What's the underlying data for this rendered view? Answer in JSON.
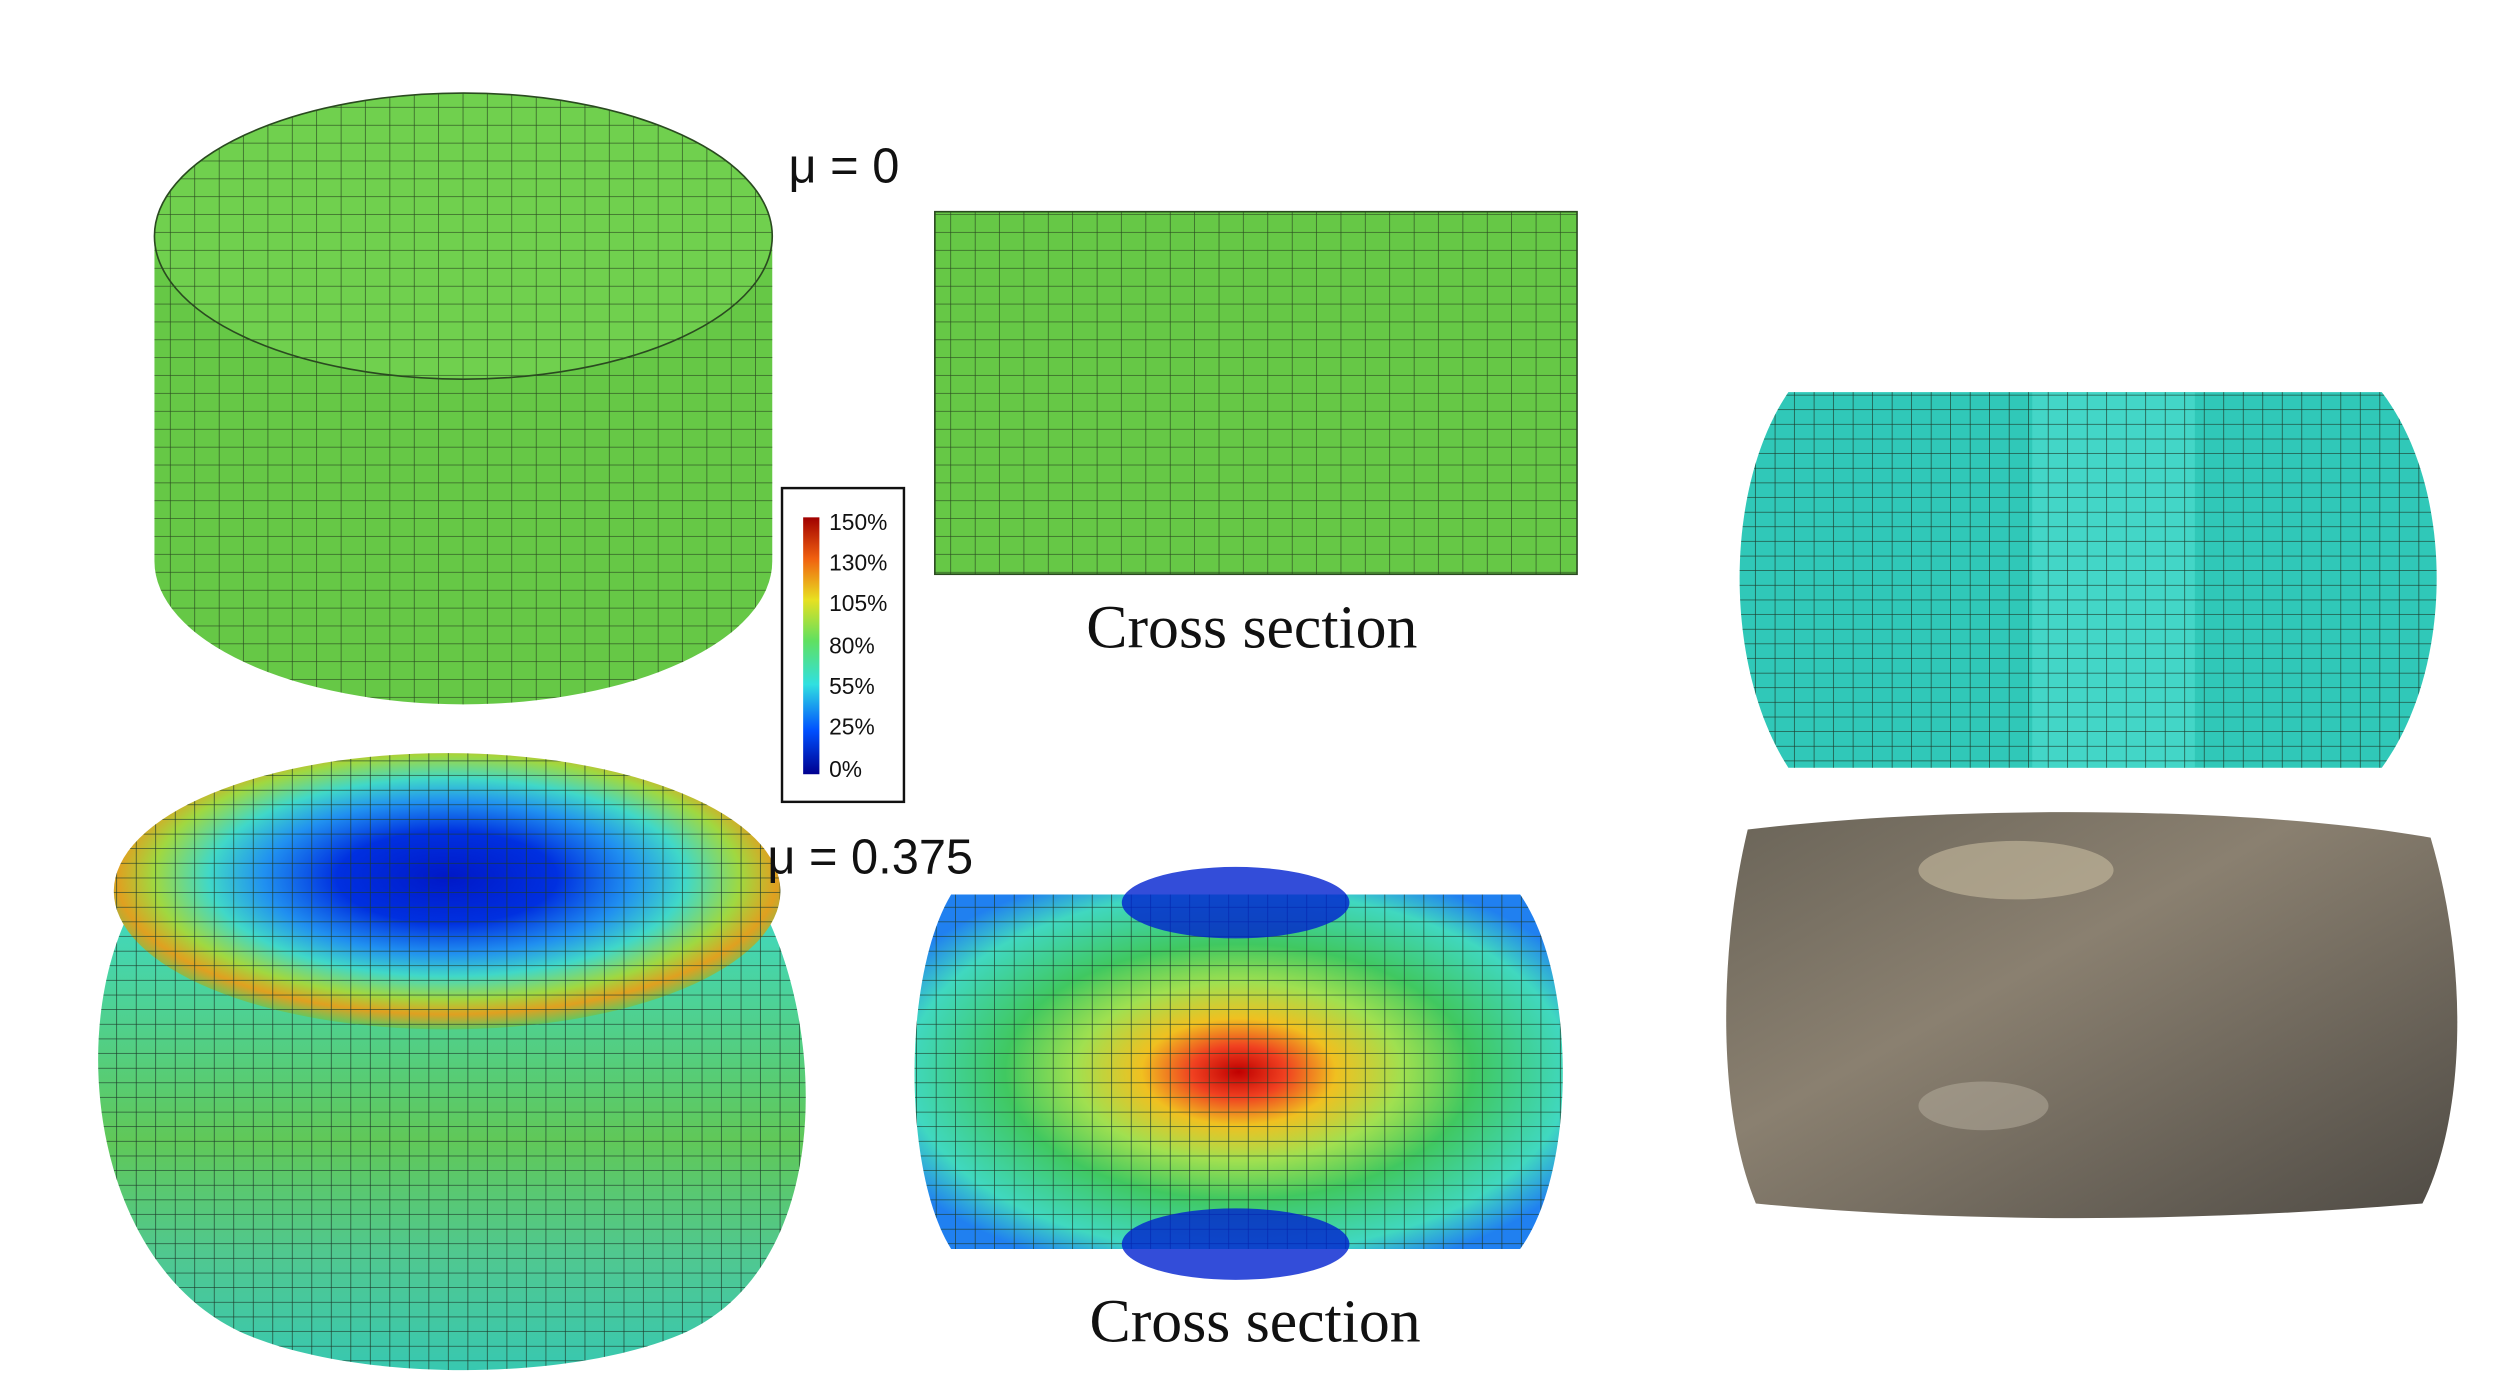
{
  "labels": {
    "top": "μ = 0",
    "bottom": "μ = 0.375"
  },
  "cross_sections": [
    "Cross section",
    "Cross section"
  ],
  "colorbar": {
    "labels": [
      "150%",
      "130%",
      "105%",
      "80%",
      "55%",
      "25%",
      "0%"
    ]
  }
}
